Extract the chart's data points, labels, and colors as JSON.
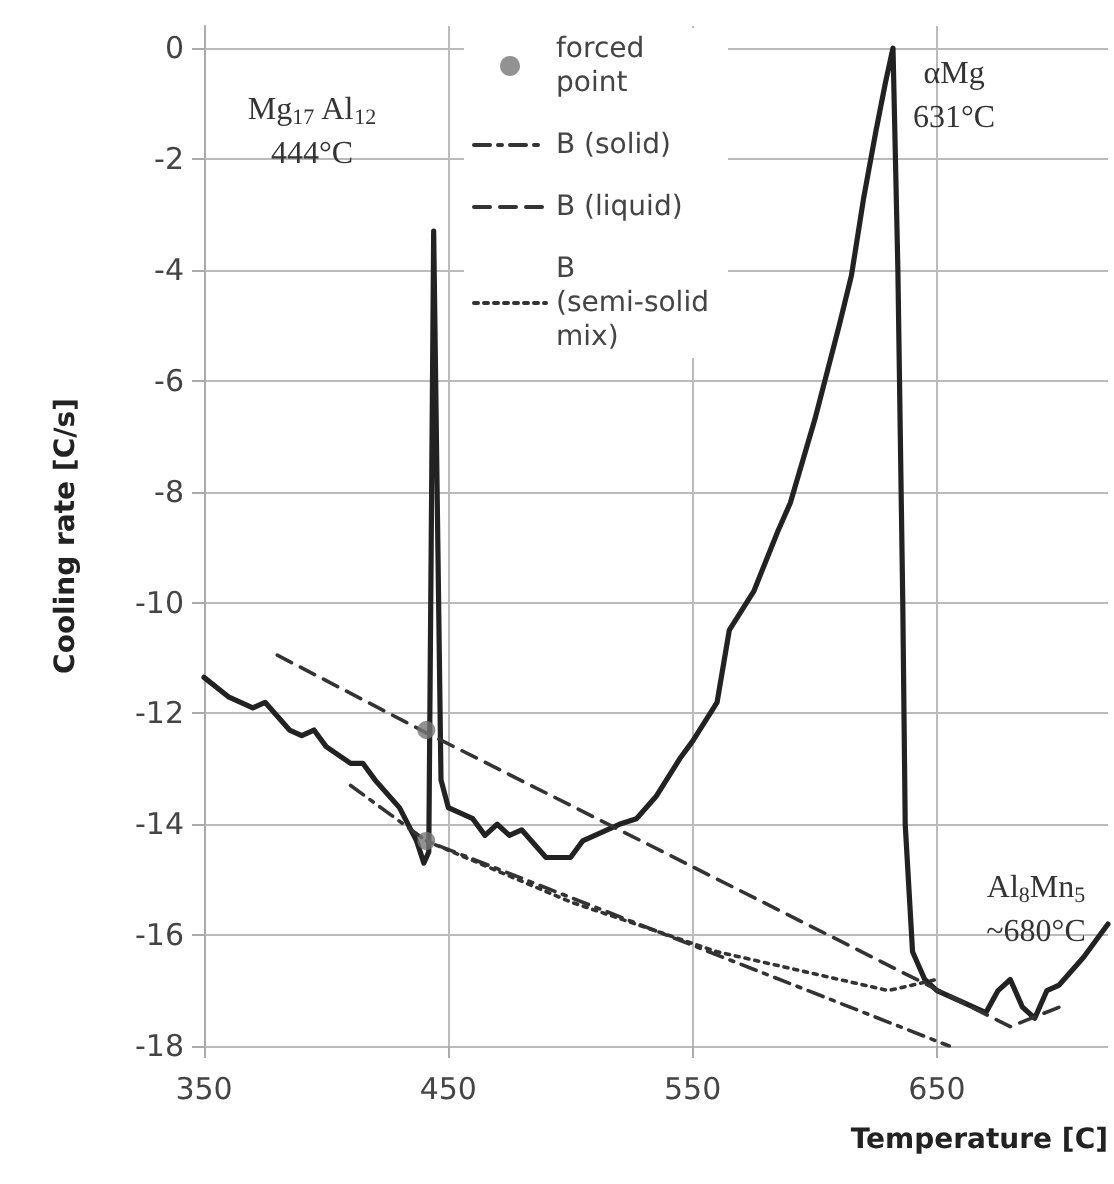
{
  "chart_data": {
    "type": "line",
    "xlabel": "Temperature [C]",
    "ylabel": "Cooling rate [C/s]",
    "xlim": [
      350,
      720
    ],
    "ylim": [
      -18,
      0.4
    ],
    "xticks": [
      350,
      450,
      550,
      650
    ],
    "yticks": [
      -18,
      -16,
      -14,
      -12,
      -10,
      -8,
      -6,
      -4,
      -2,
      0
    ],
    "grid": true,
    "legend": "top",
    "marker": "none",
    "series": [
      {
        "color": "#222222",
        "line_style": "solid",
        "x": [
          350,
          360,
          370,
          375,
          385,
          390,
          395,
          400,
          410,
          415,
          420,
          430,
          437,
          440,
          442,
          444,
          447,
          450,
          460,
          465,
          470,
          475,
          480,
          490,
          500,
          505,
          510,
          520,
          527,
          535,
          545,
          550,
          560,
          565,
          575,
          585,
          590,
          600,
          610,
          615,
          620,
          625,
          629,
          632,
          634,
          636,
          637,
          640,
          645,
          650,
          660,
          670,
          675,
          680,
          685,
          690,
          695,
          700,
          710,
          720
        ],
        "values": [
          -11.35,
          -11.7,
          -11.9,
          -11.8,
          -12.3,
          -12.4,
          -12.3,
          -12.6,
          -12.9,
          -12.9,
          -13.2,
          -13.7,
          -14.3,
          -14.7,
          -14.5,
          -3.3,
          -13.2,
          -13.7,
          -13.9,
          -14.2,
          -14.0,
          -14.2,
          -14.1,
          -14.6,
          -14.6,
          -14.3,
          -14.2,
          -14.0,
          -13.9,
          -13.5,
          -12.8,
          -12.5,
          -11.8,
          -10.5,
          -9.8,
          -8.7,
          -8.2,
          -6.7,
          -5.0,
          -4.1,
          -2.7,
          -1.5,
          -0.6,
          0,
          -4,
          -10,
          -14,
          -16.3,
          -16.8,
          -17.0,
          -17.2,
          -17.4,
          -17.0,
          -16.8,
          -17.3,
          -17.5,
          -17.0,
          -16.9,
          -16.4,
          -15.8
        ]
      },
      {
        "type": "scatter",
        "name": "forced point",
        "color": "#777777",
        "marker": "circle",
        "x": [
          441,
          441
        ],
        "values": [
          -12.3,
          -14.3
        ]
      },
      {
        "name": "B (solid)",
        "color": "#333333",
        "line_style": "dashdot",
        "x": [
          410,
          441,
          655
        ],
        "values": [
          -13.3,
          -14.3,
          -18
        ]
      },
      {
        "name": "B (liquid)",
        "color": "#333333",
        "line_style": "dashed",
        "x": [
          380,
          441,
          680,
          700
        ],
        "values": [
          -10.95,
          -12.35,
          -17.65,
          -17.3
        ]
      },
      {
        "name": "B (semi-solid mix)",
        "color": "#333333",
        "line_style": "dotted",
        "x": [
          441,
          500,
          560,
          630,
          650
        ],
        "values": [
          -14.3,
          -15.4,
          -16.3,
          -17.0,
          -16.8
        ]
      }
    ],
    "annotations": [
      "Mg$_{17}$ Al$_{12}$\n444°C",
      "αMg\n631°C",
      "Al$_{8}$Mn$_{5}$\n~680°C"
    ]
  }
}
